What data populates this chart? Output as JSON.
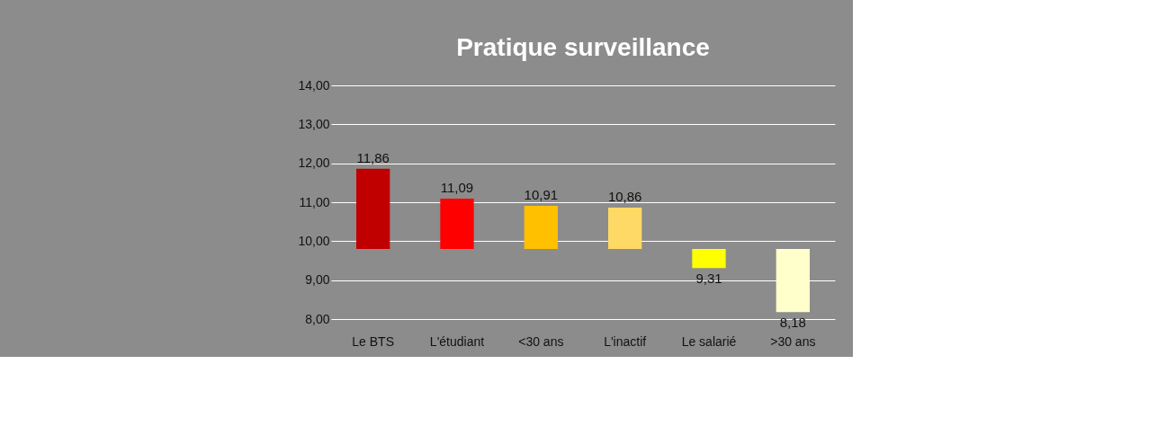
{
  "chart_data": {
    "type": "bar",
    "title": "Pratique surveillance",
    "categories": [
      "Le BTS",
      "L'étudiant",
      "<30 ans",
      "L'inactif",
      "Le salarié",
      ">30 ans"
    ],
    "values": [
      2.06,
      1.29,
      1.11,
      1.06,
      -0.49,
      -1.62
    ],
    "base": [
      9.8,
      9.8,
      9.8,
      9.8,
      9.8,
      9.8
    ],
    "value_labels": [
      "11,86",
      "11,09",
      "10,91",
      "10,86",
      "9,31",
      "8,18"
    ],
    "colors": [
      "#c00000",
      "#ff0000",
      "#ffc000",
      "#ffd966",
      "#ffff00",
      "#ffffcc"
    ],
    "ylim": [
      8,
      14
    ],
    "yticks": [
      {
        "value": 8,
        "label": "8,00"
      },
      {
        "value": 9,
        "label": "9,00"
      },
      {
        "value": 10,
        "label": "10,00"
      },
      {
        "value": 11,
        "label": "11,00"
      },
      {
        "value": 12,
        "label": "12,00"
      },
      {
        "value": 13,
        "label": "13,00"
      },
      {
        "value": 14,
        "label": "14,00"
      }
    ],
    "grid": "y"
  }
}
